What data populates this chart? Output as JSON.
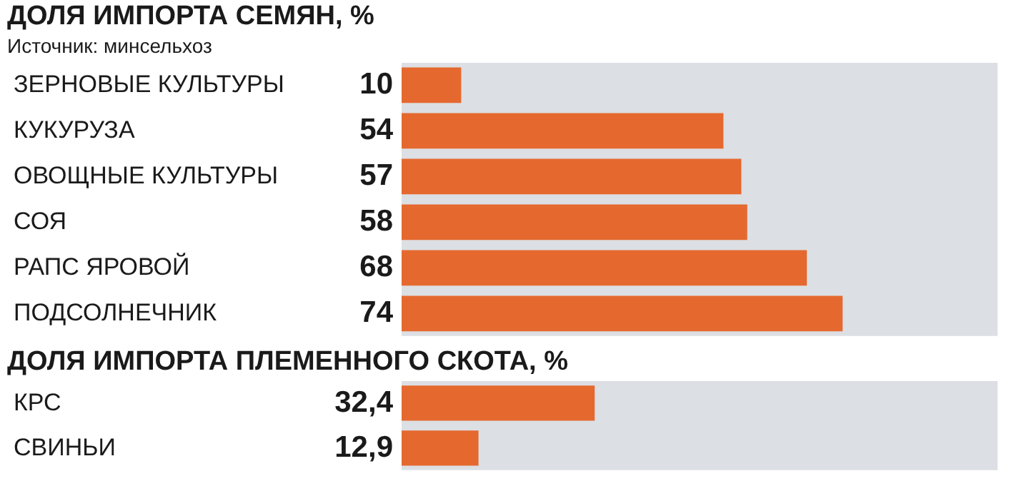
{
  "chart_data": [
    {
      "type": "bar",
      "orientation": "horizontal",
      "title": "ДОЛЯ ИМПОРТА СЕМЯН, %",
      "annotations": [
        "Источник: минсельхоз"
      ],
      "categories": [
        "ЗЕРНОВЫЕ КУЛЬТУРЫ",
        "КУКУРУЗА",
        "ОВОЩНЫЕ КУЛЬТУРЫ",
        "СОЯ",
        "РАПС ЯРОВОЙ",
        "ПОДСОЛНЕЧНИК"
      ],
      "values": [
        10,
        54,
        57,
        58,
        68,
        74
      ],
      "value_labels": [
        "10",
        "54",
        "57",
        "58",
        "68",
        "74"
      ],
      "color": "#e5692f",
      "xlim": [
        0,
        100
      ],
      "tick_labels": "y",
      "bands": [
        {
          "axis": "x",
          "from": 0,
          "to": 100,
          "color": "#dcdfe3"
        }
      ]
    },
    {
      "type": "bar",
      "orientation": "horizontal",
      "title": "ДОЛЯ ИМПОРТА ПЛЕМЕННОГО СКОТА, %",
      "categories": [
        "КРС",
        "СВИНЬИ"
      ],
      "values": [
        32.4,
        12.9
      ],
      "value_labels": [
        "32,4",
        "12,9"
      ],
      "color": "#e5692f",
      "xlim": [
        0,
        100
      ],
      "tick_labels": "y",
      "bands": [
        {
          "axis": "x",
          "from": 0,
          "to": 100,
          "color": "#dcdfe3"
        }
      ]
    }
  ]
}
